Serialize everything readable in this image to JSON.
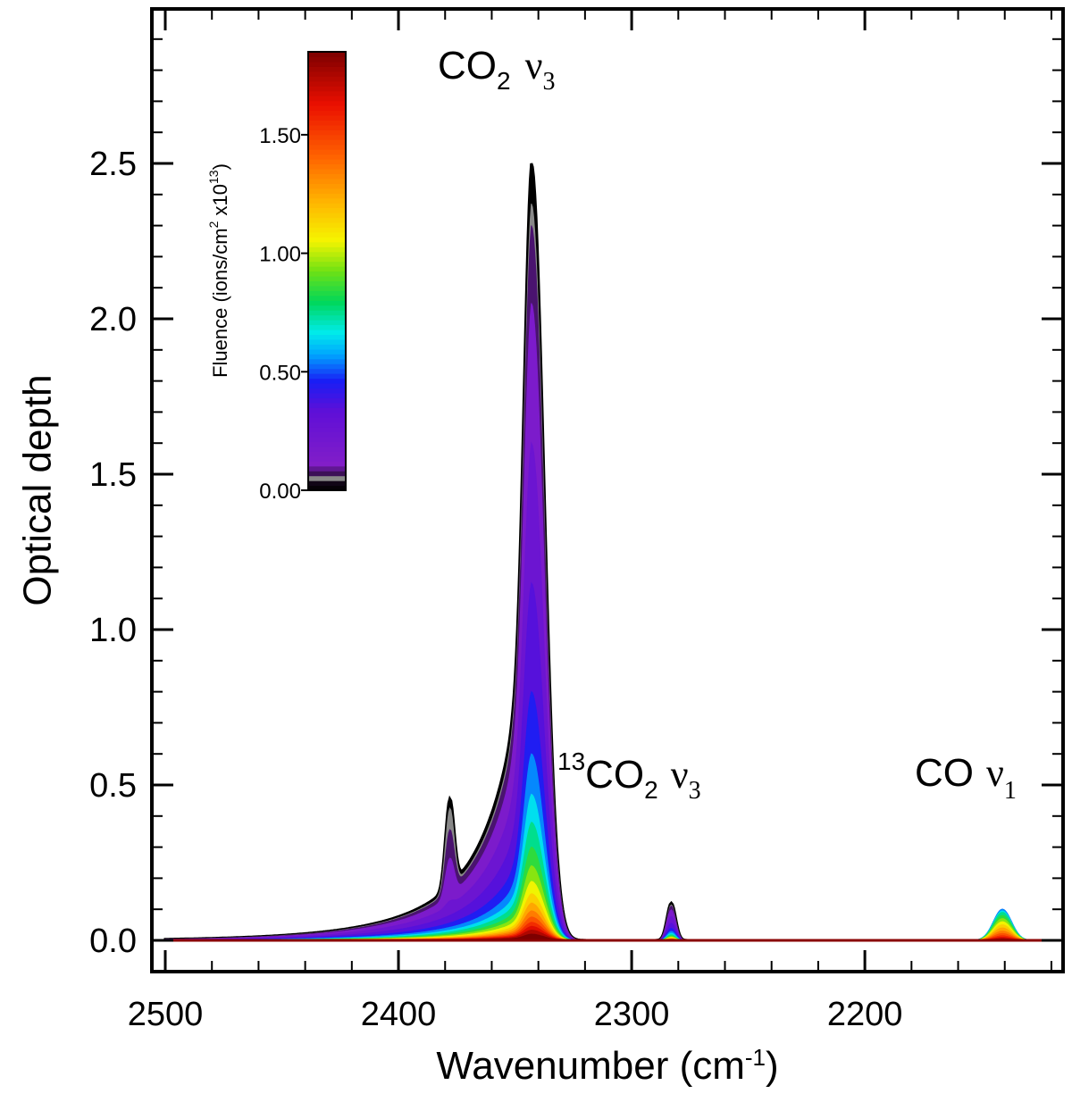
{
  "chart_data": {
    "type": "area",
    "xlabel": "Wavenumber (cm",
    "xlabel_sup": "-1",
    "xlabel_close": ")",
    "ylabel": "Optical depth",
    "xlim": [
      2500,
      2115
    ],
    "ylim": [
      -0.1,
      2.97
    ],
    "x_ticks": [
      2500,
      2400,
      2300,
      2200
    ],
    "x_tick_labels": [
      "2500",
      "2400",
      "2300",
      "2200"
    ],
    "y_ticks": [
      0.0,
      0.5,
      1.0,
      1.5,
      2.0,
      2.5
    ],
    "y_tick_labels": [
      "0.0",
      "0.5",
      "1.0",
      "1.5",
      "2.0",
      "2.5"
    ],
    "annotations": [
      {
        "text": "CO",
        "sub": "2",
        "greek": "ν",
        "greek_sub": "3",
        "label": "CO2 ν3"
      },
      {
        "text": "CO",
        "pre_sup": "13",
        "sub": "2",
        "greek": "ν",
        "greek_sub": "3",
        "label": "13CO2 ν3"
      },
      {
        "text": "CO",
        "greek": "ν",
        "greek_sub": "1",
        "label": "CO ν1"
      }
    ],
    "colorbar": {
      "title": "Fluence (ions/cm",
      "title_sup1": "2",
      "title_mid": " x10",
      "title_sup2": "13",
      "title_close": ")",
      "range": [
        0.0,
        1.85
      ],
      "ticks": [
        0.0,
        0.5,
        1.0,
        1.5
      ],
      "tick_labels": [
        "0.00",
        "0.50",
        "1.00",
        "1.50"
      ],
      "colormap": "rainbow (black at 0, purple, blue, cyan, green, yellow, orange, red, dark red at max)"
    },
    "series_note": "Family of absorbance spectra, one per fluence step, colored by fluence from black (0) to dark red (max).",
    "bands": [
      {
        "name": "CO2 main",
        "center": 2343,
        "peak_unirradiated": 2.5,
        "shoulder": {
          "center": 2378,
          "value": 0.51
        }
      },
      {
        "name": "13CO2",
        "center": 2283,
        "peak_unirradiated": 0.12
      },
      {
        "name": "CO",
        "center": 2141,
        "peak_max": 0.1
      }
    ],
    "fluence_steps": [
      0.0,
      0.02,
      0.08,
      0.15,
      0.25,
      0.35,
      0.45,
      0.55,
      0.65,
      0.75,
      0.85,
      0.95,
      1.05,
      1.15,
      1.25,
      1.35,
      1.45,
      1.55,
      1.65,
      1.75,
      1.85
    ],
    "co2_peak_by_fluence": [
      2.5,
      2.37,
      2.3,
      2.05,
      1.6,
      1.15,
      0.8,
      0.6,
      0.47,
      0.38,
      0.3,
      0.24,
      0.19,
      0.15,
      0.12,
      0.095,
      0.075,
      0.058,
      0.045,
      0.033,
      0.02
    ],
    "co_peak_by_fluence": [
      0.0,
      0.01,
      0.04,
      0.06,
      0.08,
      0.09,
      0.1,
      0.1,
      0.095,
      0.09,
      0.08,
      0.07,
      0.06,
      0.05,
      0.04,
      0.03,
      0.022,
      0.015,
      0.01,
      0.006,
      0.004
    ]
  }
}
